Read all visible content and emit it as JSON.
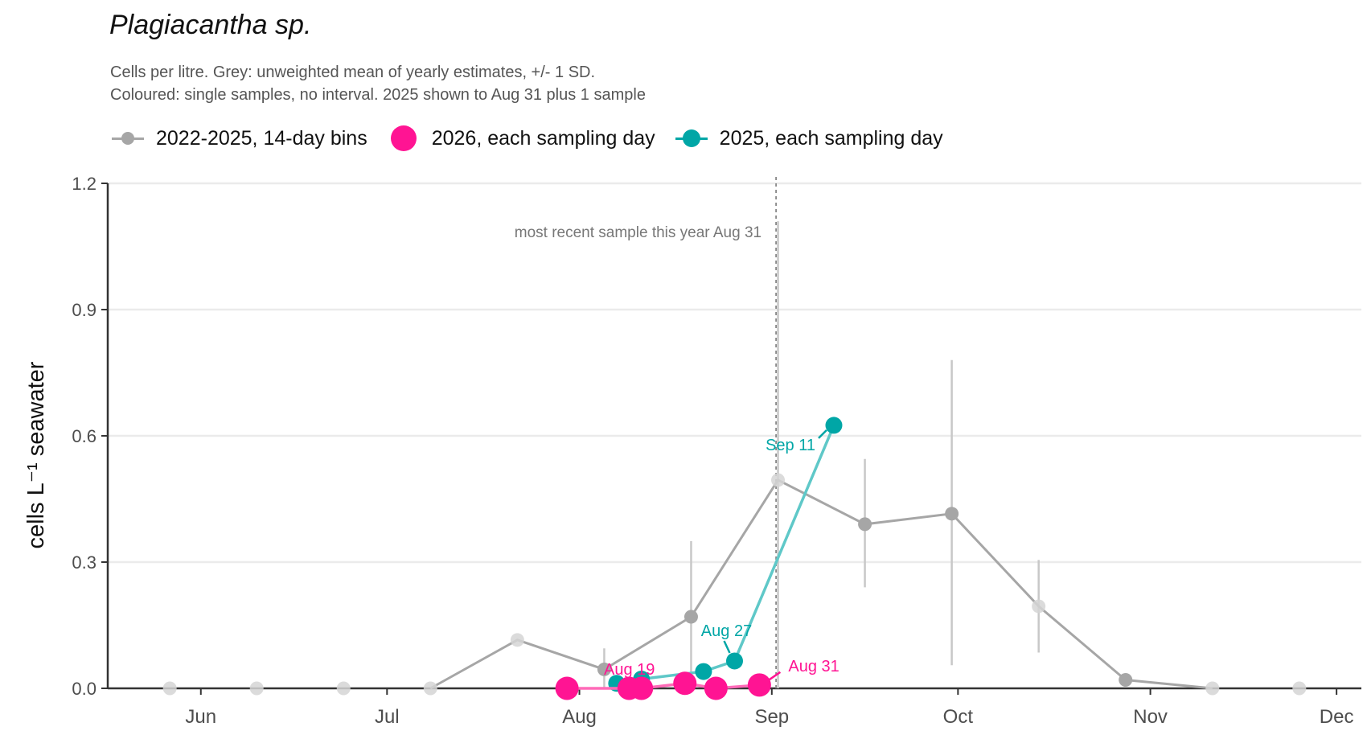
{
  "chart": {
    "title": "Plagiacantha sp.",
    "subtitle_lines": [
      "Cells per litre. Grey: unweighted mean of yearly estimates, +/- 1 SD.",
      "Coloured: single samples, no interval. 2025 shown to Aug 31 plus 1 sample"
    ],
    "legend": [
      {
        "label": "2022-2025, 14-day bins",
        "color": "#a6a6a6"
      },
      {
        "label": "2026, each sampling day",
        "color": "#ff1493"
      },
      {
        "label": "2025, each sampling day",
        "color": "#00a6a6"
      }
    ]
  },
  "chart_data": {
    "type": "line",
    "title": "Plagiacantha sp.",
    "ylabel": "cells L⁻¹ seawater",
    "ylim": [
      0,
      1.2
    ],
    "yticks": [
      0.0,
      0.3,
      0.6,
      0.9,
      1.2
    ],
    "ytick_labels": [
      "0.0",
      "0.3",
      "0.6",
      "0.9",
      "1.2"
    ],
    "xlim": [
      "2025-05-17",
      "2025-12-05"
    ],
    "xticks": [
      "2025-06-01",
      "2025-07-01",
      "2025-08-01",
      "2025-09-01",
      "2025-10-01",
      "2025-11-01",
      "2025-12-01"
    ],
    "xtick_labels": [
      "Jun",
      "Jul",
      "Aug",
      "Sep",
      "Oct",
      "Nov",
      "Dec"
    ],
    "grid": {
      "horizontal": true,
      "vertical": false
    },
    "legend_position": "top-left",
    "reference_line": {
      "date": "2025-08-31",
      "label": "most recent sample this year Aug 31"
    },
    "series": [
      {
        "name": "2022-2025, 14-day bins",
        "color": "#a6a6a6",
        "points": [
          {
            "x": "2025-05-27",
            "y": 0.0,
            "low": null,
            "high": null
          },
          {
            "x": "2025-06-10",
            "y": 0.0,
            "low": null,
            "high": null
          },
          {
            "x": "2025-06-24",
            "y": 0.0,
            "low": null,
            "high": null
          },
          {
            "x": "2025-07-08",
            "y": 0.0,
            "low": null,
            "high": null
          },
          {
            "x": "2025-07-22",
            "y": 0.115,
            "low": null,
            "high": null
          },
          {
            "x": "2025-08-05",
            "y": 0.045,
            "low": 0.0,
            "high": 0.095
          },
          {
            "x": "2025-08-19",
            "y": 0.17,
            "low": 0.0,
            "high": 0.35
          },
          {
            "x": "2025-09-02",
            "y": 0.495,
            "low": 0.0,
            "high": 1.11
          },
          {
            "x": "2025-09-16",
            "y": 0.39,
            "low": 0.24,
            "high": 0.545
          },
          {
            "x": "2025-09-30",
            "y": 0.415,
            "low": 0.055,
            "high": 0.78
          },
          {
            "x": "2025-10-14",
            "y": 0.195,
            "low": 0.085,
            "high": 0.305
          },
          {
            "x": "2025-10-28",
            "y": 0.02,
            "low": null,
            "high": null
          },
          {
            "x": "2025-11-11",
            "y": 0.0,
            "low": null,
            "high": null
          },
          {
            "x": "2025-11-25",
            "y": 0.0,
            "low": null,
            "high": null
          }
        ]
      },
      {
        "name": "2026, each sampling day",
        "color": "#ff1493",
        "points": [
          {
            "x": "2025-07-30",
            "y": 0.0
          },
          {
            "x": "2025-08-09",
            "y": 0.0
          },
          {
            "x": "2025-08-11",
            "y": 0.0
          },
          {
            "x": "2025-08-18",
            "y": 0.012
          },
          {
            "x": "2025-08-23",
            "y": 0.0
          },
          {
            "x": "2025-08-30",
            "y": 0.008
          }
        ],
        "labels": [
          {
            "x": "2025-08-11",
            "y": 0.0,
            "text": "Aug 19"
          },
          {
            "x": "2025-08-30",
            "y": 0.008,
            "text": "Aug 31"
          }
        ]
      },
      {
        "name": "2025, each sampling day",
        "color": "#00a6a6",
        "points": [
          {
            "x": "2025-08-07",
            "y": 0.012
          },
          {
            "x": "2025-08-11",
            "y": 0.022
          },
          {
            "x": "2025-08-21",
            "y": 0.04
          },
          {
            "x": "2025-08-26",
            "y": 0.065
          },
          {
            "x": "2025-09-11",
            "y": 0.625
          }
        ],
        "labels": [
          {
            "x": "2025-08-26",
            "y": 0.065,
            "text": "Aug 27"
          },
          {
            "x": "2025-09-11",
            "y": 0.625,
            "text": "Sep 11"
          }
        ]
      }
    ]
  }
}
